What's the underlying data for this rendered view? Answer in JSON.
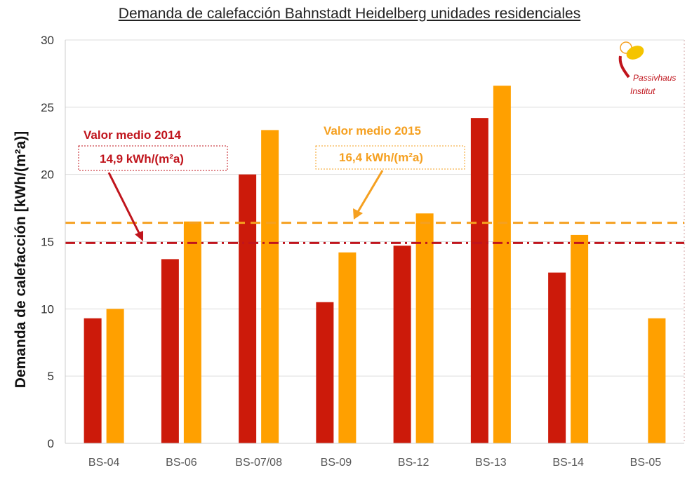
{
  "chart_data": {
    "type": "bar",
    "title": "Demanda de calefacción Bahnstadt Heidelberg unidades residenciales",
    "xlabel": "",
    "ylabel": "Demanda de calefacción [kWh/(m²a)]",
    "ylim": [
      0,
      30
    ],
    "yticks": [
      "0",
      "5",
      "10",
      "15",
      "20",
      "25",
      "30"
    ],
    "grid": true,
    "categories": [
      "BS-04",
      "BS-06",
      "BS-07/08",
      "BS-09",
      "BS-12",
      "BS-13",
      "BS-14",
      "BS-05"
    ],
    "series": [
      {
        "values": [
          9.3,
          13.7,
          20.0,
          10.5,
          14.7,
          24.2,
          12.7,
          null
        ],
        "color": "#cc1a0a"
      },
      {
        "values": [
          10.0,
          16.5,
          23.3,
          14.2,
          17.1,
          26.6,
          15.5,
          9.3
        ],
        "color": "#ffa000"
      }
    ],
    "reference_lines": [
      {
        "title": "Valor medio 2014",
        "label": "14,9 kWh/(m²a)",
        "value": 14.9,
        "color": "#c0141c",
        "style": "dash-dot"
      },
      {
        "title": "Valor medio 2015",
        "label": "16,4 kWh/(m²a)",
        "value": 16.4,
        "color": "#f5a020",
        "style": "dashed"
      }
    ]
  },
  "logo": {
    "line1": "Passivhaus",
    "line2": "Institut"
  }
}
